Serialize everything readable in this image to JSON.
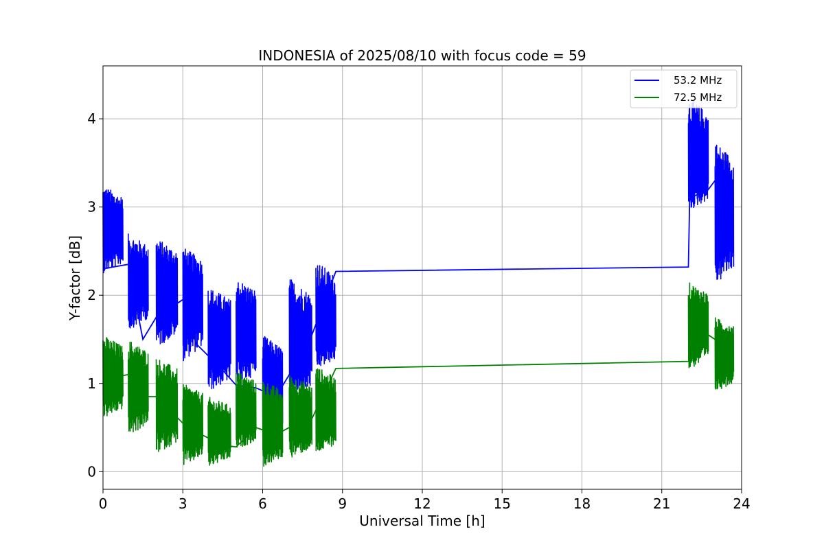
{
  "chart_data": {
    "type": "line",
    "title": "INDONESIA of 2025/08/10 with focus code = 59",
    "xlabel": "Universal Time [h]",
    "ylabel": "Y-factor [dB]",
    "xlim": [
      0,
      24
    ],
    "ylim": [
      -0.2,
      4.6
    ],
    "xticks": [
      "0",
      "3",
      "6",
      "9",
      "12",
      "15",
      "18",
      "21",
      "24"
    ],
    "yticks": [
      "0",
      "1",
      "2",
      "3",
      "4"
    ],
    "grid": true,
    "legend_position": "top-right",
    "series": [
      {
        "name": "53.2 MHz",
        "color": "#0000ff",
        "segments": [
          {
            "start": 0.0,
            "end": 0.75,
            "center": 2.7,
            "amp_low": 0.45,
            "amp_high": 0.55
          },
          {
            "start": 0.95,
            "end": 1.7,
            "center": 2.15,
            "amp_low": 0.55,
            "amp_high": 0.55
          },
          {
            "start": 2.0,
            "end": 2.8,
            "center": 2.05,
            "amp_low": 0.65,
            "amp_high": 0.6
          },
          {
            "start": 3.0,
            "end": 3.75,
            "center": 1.95,
            "amp_low": 0.7,
            "amp_high": 0.6
          },
          {
            "start": 3.95,
            "end": 4.8,
            "center": 1.5,
            "amp_low": 0.6,
            "amp_high": 0.6
          },
          {
            "start": 5.0,
            "end": 5.75,
            "center": 1.6,
            "amp_low": 0.65,
            "amp_high": 0.6
          },
          {
            "start": 6.0,
            "end": 6.75,
            "center": 0.95,
            "amp_low": 0.75,
            "amp_high": 0.6
          },
          {
            "start": 7.0,
            "end": 7.85,
            "center": 1.45,
            "amp_low": 0.65,
            "amp_high": 0.75
          },
          {
            "start": 8.0,
            "end": 8.75,
            "center": 1.65,
            "amp_low": 0.5,
            "amp_high": 0.75
          },
          {
            "start": 22.0,
            "end": 22.75,
            "center": 3.5,
            "amp_low": 0.55,
            "amp_high": 0.75
          },
          {
            "start": 23.0,
            "end": 23.7,
            "center": 2.95,
            "amp_low": 0.85,
            "amp_high": 0.8
          }
        ],
        "connectors": [
          [
            0.0,
            2.3
          ],
          [
            0.95,
            2.35
          ],
          [
            1.5,
            1.5
          ],
          [
            2.0,
            1.75
          ],
          [
            3.0,
            1.95
          ],
          [
            3.5,
            1.45
          ],
          [
            4.5,
            1.15
          ],
          [
            5.0,
            0.98
          ],
          [
            5.75,
            0.95
          ],
          [
            6.5,
            0.85
          ],
          [
            7.0,
            1.1
          ],
          [
            7.85,
            1.55
          ],
          [
            8.75,
            2.27
          ],
          [
            22.0,
            2.32
          ],
          [
            22.05,
            3.1
          ],
          [
            22.75,
            3.2
          ],
          [
            23.0,
            3.3
          ],
          [
            23.5,
            3.35
          ]
        ]
      },
      {
        "name": "72.5 MHz",
        "color": "#008000",
        "segments": [
          {
            "start": 0.0,
            "end": 0.75,
            "center": 1.05,
            "amp_low": 0.45,
            "amp_high": 0.5
          },
          {
            "start": 0.95,
            "end": 1.7,
            "center": 0.95,
            "amp_low": 0.55,
            "amp_high": 0.55
          },
          {
            "start": 2.0,
            "end": 2.8,
            "center": 0.75,
            "amp_low": 0.55,
            "amp_high": 0.55
          },
          {
            "start": 3.0,
            "end": 3.75,
            "center": 0.55,
            "amp_low": 0.5,
            "amp_high": 0.45
          },
          {
            "start": 3.95,
            "end": 4.8,
            "center": 0.45,
            "amp_low": 0.4,
            "amp_high": 0.4
          },
          {
            "start": 5.0,
            "end": 5.75,
            "center": 0.65,
            "amp_low": 0.4,
            "amp_high": 0.5
          },
          {
            "start": 6.0,
            "end": 6.75,
            "center": 0.5,
            "amp_low": 0.45,
            "amp_high": 0.55
          },
          {
            "start": 7.0,
            "end": 7.85,
            "center": 0.6,
            "amp_low": 0.45,
            "amp_high": 0.5
          },
          {
            "start": 8.0,
            "end": 8.75,
            "center": 0.65,
            "amp_low": 0.45,
            "amp_high": 0.55
          },
          {
            "start": 22.0,
            "end": 22.75,
            "center": 1.65,
            "amp_low": 0.5,
            "amp_high": 0.5
          },
          {
            "start": 23.0,
            "end": 23.7,
            "center": 1.35,
            "amp_low": 0.45,
            "amp_high": 0.4
          }
        ],
        "connectors": [
          [
            0.0,
            1.05
          ],
          [
            0.95,
            1.1
          ],
          [
            1.5,
            0.85
          ],
          [
            2.0,
            0.85
          ],
          [
            3.0,
            0.55
          ],
          [
            3.5,
            0.45
          ],
          [
            4.5,
            0.3
          ],
          [
            5.0,
            0.28
          ],
          [
            5.75,
            0.5
          ],
          [
            6.5,
            0.42
          ],
          [
            7.0,
            0.5
          ],
          [
            7.85,
            0.6
          ],
          [
            8.75,
            1.17
          ],
          [
            22.0,
            1.25
          ],
          [
            22.75,
            1.55
          ],
          [
            23.0,
            1.5
          ],
          [
            23.5,
            1.45
          ]
        ]
      }
    ]
  }
}
